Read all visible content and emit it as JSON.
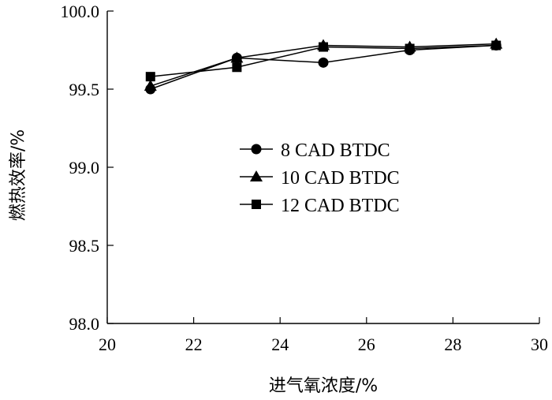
{
  "chart_data": {
    "type": "line",
    "title": "",
    "xlabel": "进气氧浓度/%",
    "ylabel": "燃热效率/%",
    "xlim": [
      20,
      30
    ],
    "ylim": [
      98.0,
      100.0
    ],
    "x_ticks": [
      "20",
      "22",
      "24",
      "26",
      "28",
      "30"
    ],
    "y_ticks": [
      "98.0",
      "98.5",
      "99.0",
      "99.5",
      "100.0"
    ],
    "grid": false,
    "legend_position": "center-right",
    "x": [
      21,
      23,
      25,
      27,
      29
    ],
    "series": [
      {
        "name": "8 CAD BTDC",
        "marker": "circle",
        "values": [
          99.5,
          99.7,
          99.67,
          99.75,
          99.78
        ]
      },
      {
        "name": "10 CAD BTDC",
        "marker": "triangle",
        "values": [
          99.52,
          99.7,
          99.78,
          99.77,
          99.79
        ]
      },
      {
        "name": "12 CAD BTDC",
        "marker": "square",
        "values": [
          99.58,
          99.64,
          99.77,
          99.76,
          99.78
        ]
      }
    ]
  }
}
